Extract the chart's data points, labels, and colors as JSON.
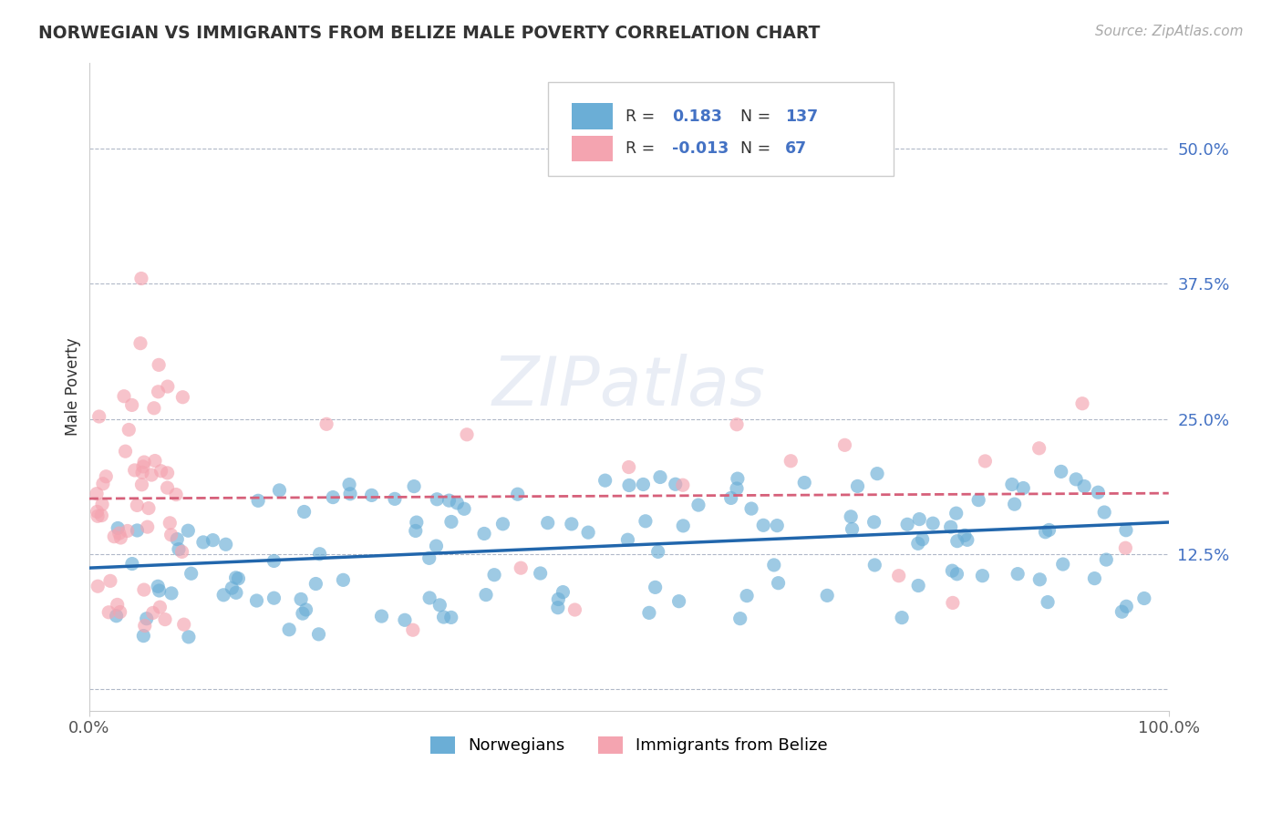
{
  "title": "NORWEGIAN VS IMMIGRANTS FROM BELIZE MALE POVERTY CORRELATION CHART",
  "source": "Source: ZipAtlas.com",
  "ylabel": "Male Poverty",
  "xlim": [
    0,
    1
  ],
  "ylim": [
    -0.02,
    0.58
  ],
  "yticks": [
    0.0,
    0.125,
    0.25,
    0.375,
    0.5
  ],
  "ytick_labels": [
    "",
    "12.5%",
    "25.0%",
    "37.5%",
    "50.0%"
  ],
  "xtick_labels": [
    "0.0%",
    "100.0%"
  ],
  "xticks": [
    0.0,
    1.0
  ],
  "norwegian_R": 0.183,
  "norwegian_N": 137,
  "belize_R": -0.013,
  "belize_N": 67,
  "norwegian_color": "#6baed6",
  "belize_color": "#f4a4b0",
  "trend_norwegian_color": "#2166ac",
  "trend_belize_color": "#d6607a",
  "background_color": "#ffffff",
  "watermark": "ZIPatlas"
}
